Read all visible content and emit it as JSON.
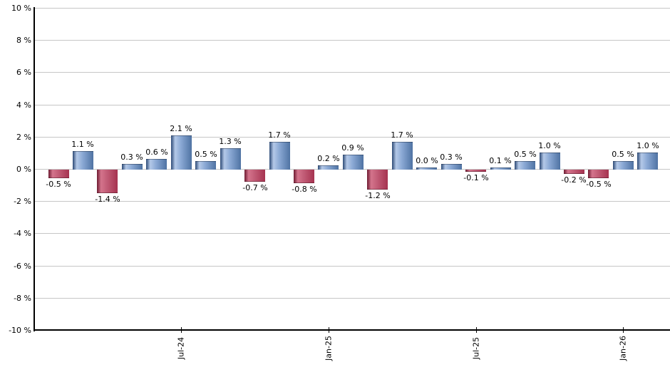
{
  "chart_data": {
    "type": "bar",
    "title": "",
    "unit": "%",
    "ylim": [
      -10,
      10
    ],
    "grid": true,
    "legend_position": "none",
    "y_tick_values": [
      10,
      8,
      6,
      4,
      2,
      0,
      -2,
      -4,
      -6,
      -8,
      -10
    ],
    "y_tick_labels": [
      "10 %",
      "8 %",
      "6 %",
      "4 %",
      "2 %",
      "0 %",
      "-2 %",
      "-4 %",
      "-6 %",
      "-8 %",
      "-10 %"
    ],
    "x_ticks": [
      {
        "label": "Jul-24",
        "bar_index": 5
      },
      {
        "label": "Jan-25",
        "bar_index": 11
      },
      {
        "label": "Jul-25",
        "bar_index": 17
      },
      {
        "label": "Jan-26",
        "bar_index": 23
      }
    ],
    "values": [
      -0.5,
      1.1,
      -1.4,
      0.3,
      0.6,
      2.1,
      0.5,
      1.3,
      -0.7,
      1.7,
      -0.8,
      0.2,
      0.9,
      -1.2,
      1.7,
      0.0,
      0.3,
      -0.1,
      0.1,
      0.5,
      1.0,
      -0.2,
      -0.5,
      0.5,
      1.0
    ],
    "bar_labels": [
      "-0.5 %",
      "1.1 %",
      "-1.4 %",
      "0.3 %",
      "0.6 %",
      "2.1 %",
      "0.5 %",
      "1.3 %",
      "-0.7 %",
      "1.7 %",
      "-0.8 %",
      "0.2 %",
      "0.9 %",
      "-1.2 %",
      "1.7 %",
      "0.0 %",
      "0.3 %",
      "-0.1 %",
      "0.1 %",
      "0.5 %",
      "1.0 %",
      "-0.2 %",
      "-0.5 %",
      "0.5 %",
      "1.0 %"
    ],
    "colors": {
      "positive_gradient": [
        "#2d4a76",
        "#b4c9e8",
        "#8aa8d4",
        "#4f73a3"
      ],
      "negative_gradient": [
        "#6d1a31",
        "#d4748c",
        "#c25d77",
        "#a63350"
      ],
      "gridline": "#c6c6c6",
      "axis": "#000000",
      "text": "#000000",
      "background": "#ffffff"
    }
  }
}
